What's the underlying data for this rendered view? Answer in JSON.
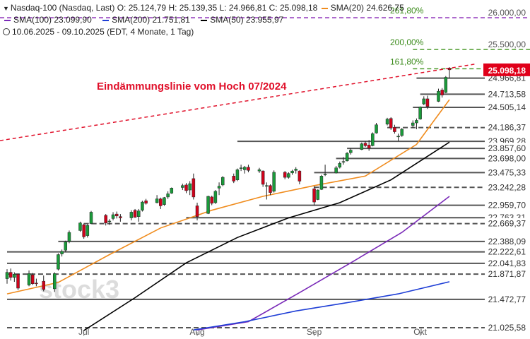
{
  "legend": {
    "instrument": "Nasdaq-100 (Nasdaq, Last)",
    "o_label": "O:",
    "o_value": "25.124,79",
    "h_label": "H:",
    "h_value": "25.139,35",
    "l_label": "L:",
    "l_value": "24.966,81",
    "c_label": "C:",
    "c_value": "25.098,18",
    "sma20": "SMA(20)",
    "sma20_value": "24.626,75",
    "sma100": "SMA(100)",
    "sma100_value": "23.099,90",
    "sma200": "SMA(200)",
    "sma200_value": "21.751,81",
    "sma50": "SMA(50)",
    "sma50_value": "23.955,97",
    "period": "10.06.2025 - 09.10.2025",
    "period_info": "(EDT, 4 Monate, 1 Tag)"
  },
  "colors": {
    "up": "#1a9a3a",
    "down": "#d0021b",
    "sma20": "#f08c1e",
    "sma50": "#000000",
    "sma100": "#7a2ab8",
    "sma200": "#1f3fd6",
    "resistance": "#e0102a",
    "fib": "#4a9a2a",
    "fib_top": "#8a2ab8",
    "level": "#555555",
    "last_badge": "#e0001a"
  },
  "chart_data": {
    "type": "candlestick",
    "title": "",
    "x_date_range": [
      "2025-06-10",
      "2025-10-09"
    ],
    "x_ticks": [
      {
        "label": "Jul",
        "date": "2025-07-01"
      },
      {
        "label": "Aug",
        "date": "2025-08-01"
      },
      {
        "label": "Sep",
        "date": "2025-09-02"
      },
      {
        "label": "Okt",
        "date": "2025-10-01"
      }
    ],
    "ylim": [
      20980,
      26150
    ],
    "y_ticks": [
      {
        "label": "26.000,00",
        "value": 26000
      },
      {
        "label": "25.500,00",
        "value": 25500
      }
    ],
    "candles": [
      {
        "d": "2025-06-10",
        "o": 21800,
        "h": 21950,
        "l": 21720,
        "c": 21900
      },
      {
        "d": "2025-06-11",
        "o": 21900,
        "h": 21960,
        "l": 21770,
        "c": 21820
      },
      {
        "d": "2025-06-12",
        "o": 21820,
        "h": 21900,
        "l": 21750,
        "c": 21870
      },
      {
        "d": "2025-06-13",
        "o": 21870,
        "h": 21880,
        "l": 21620,
        "c": 21650
      },
      {
        "d": "2025-06-16",
        "o": 21700,
        "h": 21930,
        "l": 21680,
        "c": 21880
      },
      {
        "d": "2025-06-17",
        "o": 21860,
        "h": 21890,
        "l": 21700,
        "c": 21720
      },
      {
        "d": "2025-06-18",
        "o": 21730,
        "h": 21800,
        "l": 21680,
        "c": 21720
      },
      {
        "d": "2025-06-20",
        "o": 21760,
        "h": 21850,
        "l": 21600,
        "c": 21630
      },
      {
        "d": "2025-06-23",
        "o": 21640,
        "h": 21900,
        "l": 21590,
        "c": 21880
      },
      {
        "d": "2025-06-24",
        "o": 21950,
        "h": 22200,
        "l": 21930,
        "c": 22180
      },
      {
        "d": "2025-06-25",
        "o": 22190,
        "h": 22260,
        "l": 22150,
        "c": 22230
      },
      {
        "d": "2025-06-26",
        "o": 22250,
        "h": 22400,
        "l": 22220,
        "c": 22380
      },
      {
        "d": "2025-06-27",
        "o": 22390,
        "h": 22560,
        "l": 22360,
        "c": 22530
      },
      {
        "d": "2025-06-30",
        "o": 22560,
        "h": 22700,
        "l": 22540,
        "c": 22680
      },
      {
        "d": "2025-07-01",
        "o": 22650,
        "h": 22670,
        "l": 22430,
        "c": 22460
      },
      {
        "d": "2025-07-02",
        "o": 22480,
        "h": 22660,
        "l": 22450,
        "c": 22640
      },
      {
        "d": "2025-07-03",
        "o": 22670,
        "h": 22870,
        "l": 22660,
        "c": 22850
      },
      {
        "d": "2025-07-07",
        "o": 22800,
        "h": 22820,
        "l": 22640,
        "c": 22680
      },
      {
        "d": "2025-07-08",
        "o": 22700,
        "h": 22740,
        "l": 22650,
        "c": 22710
      },
      {
        "d": "2025-07-09",
        "o": 22750,
        "h": 22850,
        "l": 22720,
        "c": 22810
      },
      {
        "d": "2025-07-10",
        "o": 22820,
        "h": 22860,
        "l": 22750,
        "c": 22790
      },
      {
        "d": "2025-07-11",
        "o": 22780,
        "h": 22820,
        "l": 22700,
        "c": 22760
      },
      {
        "d": "2025-07-14",
        "o": 22760,
        "h": 22880,
        "l": 22720,
        "c": 22850
      },
      {
        "d": "2025-07-15",
        "o": 22880,
        "h": 22900,
        "l": 22760,
        "c": 22770
      },
      {
        "d": "2025-07-16",
        "o": 22780,
        "h": 22900,
        "l": 22700,
        "c": 22870
      },
      {
        "d": "2025-07-17",
        "o": 22880,
        "h": 23030,
        "l": 22860,
        "c": 23010
      },
      {
        "d": "2025-07-18",
        "o": 23030,
        "h": 23060,
        "l": 22970,
        "c": 22990
      },
      {
        "d": "2025-07-21",
        "o": 23000,
        "h": 23120,
        "l": 22990,
        "c": 23060
      },
      {
        "d": "2025-07-22",
        "o": 23060,
        "h": 23080,
        "l": 22900,
        "c": 22950
      },
      {
        "d": "2025-07-23",
        "o": 22970,
        "h": 23090,
        "l": 22950,
        "c": 23080
      },
      {
        "d": "2025-07-24",
        "o": 23090,
        "h": 23180,
        "l": 23060,
        "c": 23140
      },
      {
        "d": "2025-07-25",
        "o": 23150,
        "h": 23240,
        "l": 23140,
        "c": 23230
      },
      {
        "d": "2025-07-28",
        "o": 23240,
        "h": 23300,
        "l": 23200,
        "c": 23270
      },
      {
        "d": "2025-07-29",
        "o": 23280,
        "h": 23310,
        "l": 23150,
        "c": 23190
      },
      {
        "d": "2025-07-30",
        "o": 23200,
        "h": 23340,
        "l": 23120,
        "c": 23300
      },
      {
        "d": "2025-07-31",
        "o": 23380,
        "h": 23460,
        "l": 23050,
        "c": 23090
      },
      {
        "d": "2025-08-01",
        "o": 22950,
        "h": 23000,
        "l": 22720,
        "c": 22780
      },
      {
        "d": "2025-08-04",
        "o": 22830,
        "h": 23110,
        "l": 22820,
        "c": 23100
      },
      {
        "d": "2025-08-05",
        "o": 23090,
        "h": 23110,
        "l": 22960,
        "c": 22990
      },
      {
        "d": "2025-08-06",
        "o": 23000,
        "h": 23200,
        "l": 22980,
        "c": 23180
      },
      {
        "d": "2025-08-07",
        "o": 23230,
        "h": 23320,
        "l": 23120,
        "c": 23260
      },
      {
        "d": "2025-08-08",
        "o": 23280,
        "h": 23420,
        "l": 23260,
        "c": 23400
      },
      {
        "d": "2025-08-11",
        "o": 23420,
        "h": 23460,
        "l": 23310,
        "c": 23340
      },
      {
        "d": "2025-08-12",
        "o": 23360,
        "h": 23540,
        "l": 23340,
        "c": 23520
      },
      {
        "d": "2025-08-13",
        "o": 23540,
        "h": 23600,
        "l": 23500,
        "c": 23550
      },
      {
        "d": "2025-08-14",
        "o": 23520,
        "h": 23580,
        "l": 23460,
        "c": 23560
      },
      {
        "d": "2025-08-15",
        "o": 23560,
        "h": 23600,
        "l": 23480,
        "c": 23510
      },
      {
        "d": "2025-08-18",
        "o": 23500,
        "h": 23550,
        "l": 23470,
        "c": 23520
      },
      {
        "d": "2025-08-19",
        "o": 23500,
        "h": 23510,
        "l": 23250,
        "c": 23290
      },
      {
        "d": "2025-08-20",
        "o": 23270,
        "h": 23320,
        "l": 23050,
        "c": 23270
      },
      {
        "d": "2025-08-21",
        "o": 23270,
        "h": 23290,
        "l": 23120,
        "c": 23160
      },
      {
        "d": "2025-08-22",
        "o": 23180,
        "h": 23510,
        "l": 23160,
        "c": 23480
      },
      {
        "d": "2025-08-25",
        "o": 23480,
        "h": 23500,
        "l": 23370,
        "c": 23400
      },
      {
        "d": "2025-08-26",
        "o": 23400,
        "h": 23480,
        "l": 23380,
        "c": 23460
      },
      {
        "d": "2025-08-27",
        "o": 23470,
        "h": 23520,
        "l": 23440,
        "c": 23500
      },
      {
        "d": "2025-08-28",
        "o": 23510,
        "h": 23560,
        "l": 23460,
        "c": 23530
      },
      {
        "d": "2025-08-29",
        "o": 23500,
        "h": 23510,
        "l": 23290,
        "c": 23340
      },
      {
        "d": "2025-09-02",
        "o": 23220,
        "h": 23260,
        "l": 22960,
        "c": 23010
      },
      {
        "d": "2025-09-03",
        "o": 23050,
        "h": 23210,
        "l": 23040,
        "c": 23200
      },
      {
        "d": "2025-09-04",
        "o": 23210,
        "h": 23440,
        "l": 23200,
        "c": 23420
      },
      {
        "d": "2025-09-05",
        "o": 23450,
        "h": 23600,
        "l": 23420,
        "c": 23450
      },
      {
        "d": "2025-09-08",
        "o": 23470,
        "h": 23580,
        "l": 23460,
        "c": 23550
      },
      {
        "d": "2025-09-09",
        "o": 23560,
        "h": 23650,
        "l": 23540,
        "c": 23620
      },
      {
        "d": "2025-09-10",
        "o": 23640,
        "h": 23720,
        "l": 23600,
        "c": 23650
      },
      {
        "d": "2025-09-11",
        "o": 23660,
        "h": 23800,
        "l": 23650,
        "c": 23780
      },
      {
        "d": "2025-09-12",
        "o": 23790,
        "h": 23860,
        "l": 23760,
        "c": 23830
      },
      {
        "d": "2025-09-15",
        "o": 23840,
        "h": 23950,
        "l": 23830,
        "c": 23930
      },
      {
        "d": "2025-09-16",
        "o": 23940,
        "h": 23970,
        "l": 23880,
        "c": 23900
      },
      {
        "d": "2025-09-17",
        "o": 23910,
        "h": 23990,
        "l": 23820,
        "c": 23860
      },
      {
        "d": "2025-09-18",
        "o": 23900,
        "h": 24110,
        "l": 23890,
        "c": 24090
      },
      {
        "d": "2025-09-19",
        "o": 24100,
        "h": 24260,
        "l": 24090,
        "c": 24230
      },
      {
        "d": "2025-09-22",
        "o": 24240,
        "h": 24340,
        "l": 24220,
        "c": 24320
      },
      {
        "d": "2025-09-23",
        "o": 24330,
        "h": 24350,
        "l": 24150,
        "c": 24180
      },
      {
        "d": "2025-09-24",
        "o": 24190,
        "h": 24230,
        "l": 24090,
        "c": 24120
      },
      {
        "d": "2025-09-25",
        "o": 24050,
        "h": 24090,
        "l": 23970,
        "c": 24050
      },
      {
        "d": "2025-09-26",
        "o": 24060,
        "h": 24180,
        "l": 24040,
        "c": 24160
      },
      {
        "d": "2025-09-29",
        "o": 24220,
        "h": 24300,
        "l": 24180,
        "c": 24260
      },
      {
        "d": "2025-09-30",
        "o": 24260,
        "h": 24330,
        "l": 24160,
        "c": 24300
      },
      {
        "d": "2025-10-01",
        "o": 24320,
        "h": 24520,
        "l": 24310,
        "c": 24510
      },
      {
        "d": "2025-10-02",
        "o": 24560,
        "h": 24680,
        "l": 24540,
        "c": 24640
      },
      {
        "d": "2025-10-03",
        "o": 24640,
        "h": 24690,
        "l": 24480,
        "c": 24520
      },
      {
        "d": "2025-10-06",
        "o": 24600,
        "h": 24800,
        "l": 24590,
        "c": 24760
      },
      {
        "d": "2025-10-07",
        "o": 24780,
        "h": 24810,
        "l": 24660,
        "c": 24700
      },
      {
        "d": "2025-10-08",
        "o": 24740,
        "h": 25000,
        "l": 24730,
        "c": 24980
      },
      {
        "d": "2025-10-09",
        "o": 25124.79,
        "h": 25139.35,
        "l": 24966.81,
        "c": 25098.18
      }
    ],
    "series": [
      {
        "name": "SMA(20)",
        "color": "#f08c1e",
        "points": [
          [
            "2025-06-10",
            21560
          ],
          [
            "2025-06-24",
            21740
          ],
          [
            "2025-07-08",
            22180
          ],
          [
            "2025-07-22",
            22600
          ],
          [
            "2025-08-05",
            22880
          ],
          [
            "2025-08-19",
            23100
          ],
          [
            "2025-09-02",
            23270
          ],
          [
            "2025-09-16",
            23420
          ],
          [
            "2025-09-30",
            23920
          ],
          [
            "2025-10-09",
            24626.75
          ]
        ]
      },
      {
        "name": "SMA(50)",
        "color": "#000000",
        "points": [
          [
            "2025-07-01",
            20980
          ],
          [
            "2025-07-15",
            21500
          ],
          [
            "2025-07-29",
            22050
          ],
          [
            "2025-08-12",
            22450
          ],
          [
            "2025-08-26",
            22760
          ],
          [
            "2025-09-09",
            23000
          ],
          [
            "2025-09-23",
            23360
          ],
          [
            "2025-10-09",
            23955.97
          ]
        ]
      },
      {
        "name": "SMA(100)",
        "color": "#7a2ab8",
        "points": [
          [
            "2025-08-01",
            20990
          ],
          [
            "2025-08-15",
            21120
          ],
          [
            "2025-08-29",
            21580
          ],
          [
            "2025-09-12",
            22050
          ],
          [
            "2025-09-26",
            22530
          ],
          [
            "2025-10-09",
            23099.9
          ]
        ]
      },
      {
        "name": "SMA(200)",
        "color": "#1f3fd6",
        "points": [
          [
            "2025-07-31",
            20990
          ],
          [
            "2025-08-14",
            21120
          ],
          [
            "2025-08-28",
            21290
          ],
          [
            "2025-09-11",
            21420
          ],
          [
            "2025-09-25",
            21560
          ],
          [
            "2025-10-09",
            21751.81
          ]
        ]
      }
    ],
    "resistance": {
      "label": "Eindämmungslinie vom Hoch 07/2024",
      "from": [
        "2025-06-10",
        23980
      ],
      "to": [
        "2025-10-09",
        25080
      ]
    },
    "fib_levels": [
      {
        "label": "261,80%",
        "value": 25920,
        "start": "2025-09-29",
        "color": "#8a2ab8"
      },
      {
        "label": "200,00%",
        "value": 25420,
        "start": "2025-09-29",
        "color": "#4a9a2a"
      },
      {
        "label": "161,80%",
        "value": 25115,
        "start": "2025-09-29",
        "color": "#4a9a2a"
      }
    ],
    "levels": [
      {
        "label": "24.966,81",
        "value": 24966.81,
        "start": "2025-09-30",
        "style": "solid"
      },
      {
        "label": "24.713,58",
        "value": 24713.58,
        "start": "2025-10-01",
        "style": "solid"
      },
      {
        "label": "24.505,14",
        "value": 24505.14,
        "start": "2025-09-29",
        "style": "solid"
      },
      {
        "label": "24.186,37",
        "value": 24186.37,
        "start": "2025-09-22",
        "style": "dashed"
      },
      {
        "label": "23.969,28",
        "value": 23969.28,
        "start": "2025-08-12",
        "style": "solid"
      },
      {
        "label": "23.857,60",
        "value": 23857.6,
        "start": "2025-09-11",
        "style": "solid"
      },
      {
        "label": "23.698,00",
        "value": 23698.0,
        "start": "2025-09-08",
        "style": "solid"
      },
      {
        "label": "23.475,33",
        "value": 23475.33,
        "start": "2025-09-02",
        "style": "solid"
      },
      {
        "label": "23.242,28",
        "value": 23242.28,
        "start": "2025-09-02",
        "style": "dashed"
      },
      {
        "label": "22.959,70",
        "value": 22959.7,
        "start": "2025-08-18",
        "style": "solid"
      },
      {
        "label": "22.763,31",
        "value": 22763.31,
        "start": "2025-07-29",
        "style": "solid"
      },
      {
        "label": "22.669,37",
        "value": 22669.37,
        "start": "2025-07-01",
        "style": "dashed"
      },
      {
        "label": "22.388,09",
        "value": 22388.09,
        "start": "2025-06-24",
        "style": "solid"
      },
      {
        "label": "22.222,61",
        "value": 22222.61,
        "start": "2025-06-10",
        "style": "solid"
      },
      {
        "label": "22.041,83",
        "value": 22041.83,
        "start": "2025-06-10",
        "style": "solid"
      },
      {
        "label": "21.871,87",
        "value": 21871.87,
        "start": "2025-06-10",
        "style": "dashed"
      },
      {
        "label": "21.472,77",
        "value": 21472.77,
        "start": "2025-06-10",
        "style": "solid"
      },
      {
        "label": "21.025,58",
        "value": 21025.58,
        "start": "2025-06-10",
        "style": "dashed"
      }
    ],
    "last_price": {
      "label": "25.098,18",
      "value": 25098.18
    },
    "watermark": "stock3"
  }
}
